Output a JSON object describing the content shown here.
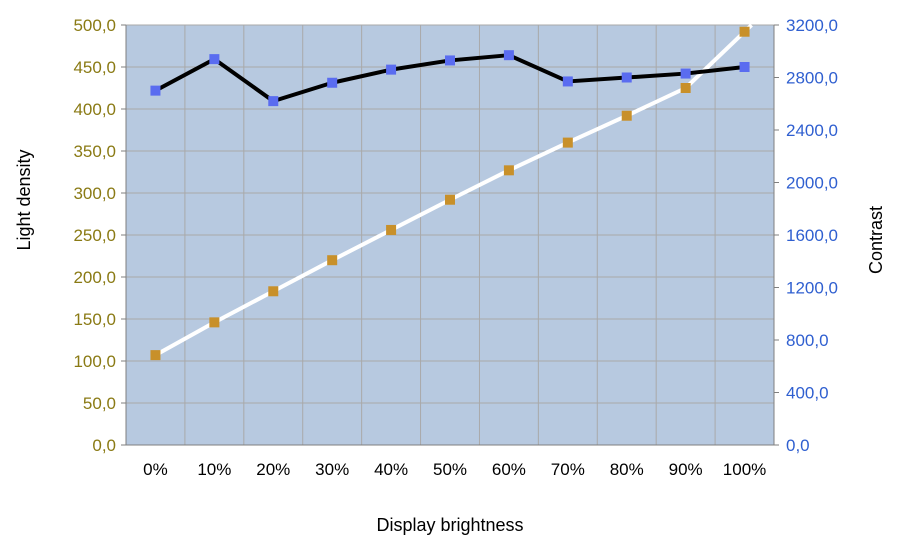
{
  "chart_data": {
    "type": "line",
    "title": "",
    "xlabel": "Display brightness",
    "ylabel": "Light density",
    "ylabel_right": "Contrast",
    "categories": [
      "0%",
      "10%",
      "20%",
      "30%",
      "40%",
      "50%",
      "60%",
      "70%",
      "80%",
      "90%",
      "100%"
    ],
    "ylim": [
      0,
      500
    ],
    "ylim_right": [
      0,
      3200
    ],
    "yticks": [
      "0,0",
      "50,0",
      "100,0",
      "150,0",
      "200,0",
      "250,0",
      "300,0",
      "350,0",
      "400,0",
      "450,0",
      "500,0"
    ],
    "yticks_right": [
      "0,0",
      "400,0",
      "800,0",
      "1200,0",
      "1600,0",
      "2000,0",
      "2400,0",
      "2800,0",
      "3200,0"
    ],
    "grid": true,
    "legend": "none",
    "series": [
      {
        "axis": "left",
        "line_color": "#ffffff",
        "marker_color": "#c8902a",
        "values": [
          107,
          146,
          183,
          220,
          256,
          292,
          327,
          360,
          392,
          425,
          492
        ]
      },
      {
        "axis": "right",
        "line_color": "#000000",
        "marker_color": "#5a6cf0",
        "values": [
          2700,
          2940,
          2620,
          2760,
          2860,
          2930,
          2970,
          2770,
          2800,
          2830,
          2880
        ]
      }
    ],
    "colors": {
      "plot_background": "#b7c9e0",
      "grid": "#a9a9a9",
      "left_axis_text": "#8a7a14",
      "right_axis_text": "#2f5fd0"
    }
  }
}
